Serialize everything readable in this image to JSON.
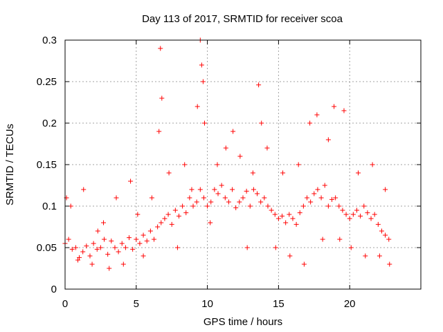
{
  "chart_data": {
    "type": "scatter",
    "title": "Day 113 of 2017, SRMTID for receiver scoa",
    "xlabel": "GPS time / hours",
    "ylabel": "SRMTID / TECUs",
    "xlim": [
      0,
      25
    ],
    "ylim": [
      0,
      0.3
    ],
    "xticks": [
      0,
      5,
      10,
      15,
      20
    ],
    "yticks": [
      0,
      0.05,
      0.1,
      0.15,
      0.2,
      0.25,
      0.3
    ],
    "xtick_labels": [
      "0",
      "5",
      "10",
      "15",
      "20"
    ],
    "ytick_labels": [
      "0",
      "0.05",
      "0.1",
      "0.15",
      "0.2",
      "0.25",
      "0.3"
    ],
    "grid": true,
    "marker": "+",
    "color": "#ff0000",
    "series": [
      {
        "name": "SRMTID",
        "x": [
          0.0,
          0.25,
          0.5,
          0.75,
          1.0,
          1.25,
          1.5,
          1.75,
          2.0,
          2.25,
          2.5,
          2.75,
          3.0,
          3.25,
          3.5,
          3.75,
          4.0,
          4.25,
          4.5,
          4.75,
          5.0,
          5.25,
          5.5,
          5.75,
          6.0,
          6.25,
          6.5,
          6.75,
          7.0,
          7.25,
          7.5,
          7.75,
          8.0,
          8.25,
          8.5,
          8.75,
          9.0,
          9.25,
          9.5,
          9.75,
          10.0,
          10.25,
          10.5,
          10.75,
          11.0,
          11.25,
          11.5,
          11.75,
          12.0,
          12.25,
          12.5,
          12.75,
          13.0,
          13.25,
          13.5,
          13.75,
          14.0,
          14.25,
          14.5,
          14.75,
          15.0,
          15.25,
          15.5,
          15.75,
          16.0,
          16.25,
          16.5,
          16.75,
          17.0,
          17.25,
          17.5,
          17.75,
          18.0,
          18.25,
          18.5,
          18.75,
          19.0,
          19.25,
          19.5,
          19.75,
          20.0,
          20.25,
          20.5,
          20.75,
          21.0,
          21.25,
          21.5,
          21.75,
          22.0,
          22.25,
          22.5,
          22.75,
          0.1,
          0.4,
          0.9,
          1.3,
          1.9,
          2.3,
          2.7,
          3.1,
          3.6,
          4.1,
          4.6,
          5.1,
          5.5,
          6.1,
          6.6,
          6.7,
          6.8,
          7.3,
          7.9,
          8.4,
          8.9,
          9.3,
          9.5,
          9.6,
          9.7,
          9.8,
          10.2,
          10.7,
          11.3,
          11.8,
          12.3,
          12.8,
          13.2,
          13.6,
          13.8,
          14.2,
          14.8,
          15.3,
          15.8,
          16.4,
          16.8,
          17.2,
          17.7,
          18.1,
          18.5,
          18.9,
          19.3,
          19.6,
          20.1,
          20.6,
          21.1,
          21.6,
          22.1,
          22.5,
          22.8
        ],
        "y": [
          0.055,
          0.06,
          0.048,
          0.05,
          0.038,
          0.045,
          0.052,
          0.04,
          0.055,
          0.048,
          0.05,
          0.06,
          0.042,
          0.058,
          0.05,
          0.045,
          0.055,
          0.05,
          0.062,
          0.048,
          0.06,
          0.055,
          0.065,
          0.058,
          0.07,
          0.06,
          0.075,
          0.08,
          0.085,
          0.09,
          0.078,
          0.095,
          0.088,
          0.1,
          0.092,
          0.11,
          0.1,
          0.105,
          0.12,
          0.11,
          0.1,
          0.105,
          0.12,
          0.115,
          0.125,
          0.11,
          0.105,
          0.12,
          0.098,
          0.105,
          0.11,
          0.118,
          0.1,
          0.12,
          0.115,
          0.105,
          0.11,
          0.1,
          0.095,
          0.09,
          0.085,
          0.088,
          0.08,
          0.09,
          0.085,
          0.078,
          0.092,
          0.1,
          0.11,
          0.105,
          0.115,
          0.12,
          0.11,
          0.125,
          0.1,
          0.108,
          0.11,
          0.1,
          0.095,
          0.09,
          0.085,
          0.09,
          0.095,
          0.088,
          0.1,
          0.092,
          0.085,
          0.09,
          0.078,
          0.07,
          0.065,
          0.06,
          0.11,
          0.1,
          0.035,
          0.12,
          0.03,
          0.07,
          0.08,
          0.025,
          0.11,
          0.03,
          0.13,
          0.09,
          0.04,
          0.11,
          0.19,
          0.29,
          0.23,
          0.14,
          0.05,
          0.15,
          0.12,
          0.22,
          0.3,
          0.27,
          0.25,
          0.2,
          0.08,
          0.15,
          0.17,
          0.19,
          0.16,
          0.05,
          0.14,
          0.246,
          0.2,
          0.17,
          0.05,
          0.14,
          0.04,
          0.15,
          0.03,
          0.2,
          0.21,
          0.06,
          0.18,
          0.22,
          0.06,
          0.215,
          0.05,
          0.14,
          0.04,
          0.15,
          0.04,
          0.12,
          0.03
        ]
      }
    ]
  }
}
